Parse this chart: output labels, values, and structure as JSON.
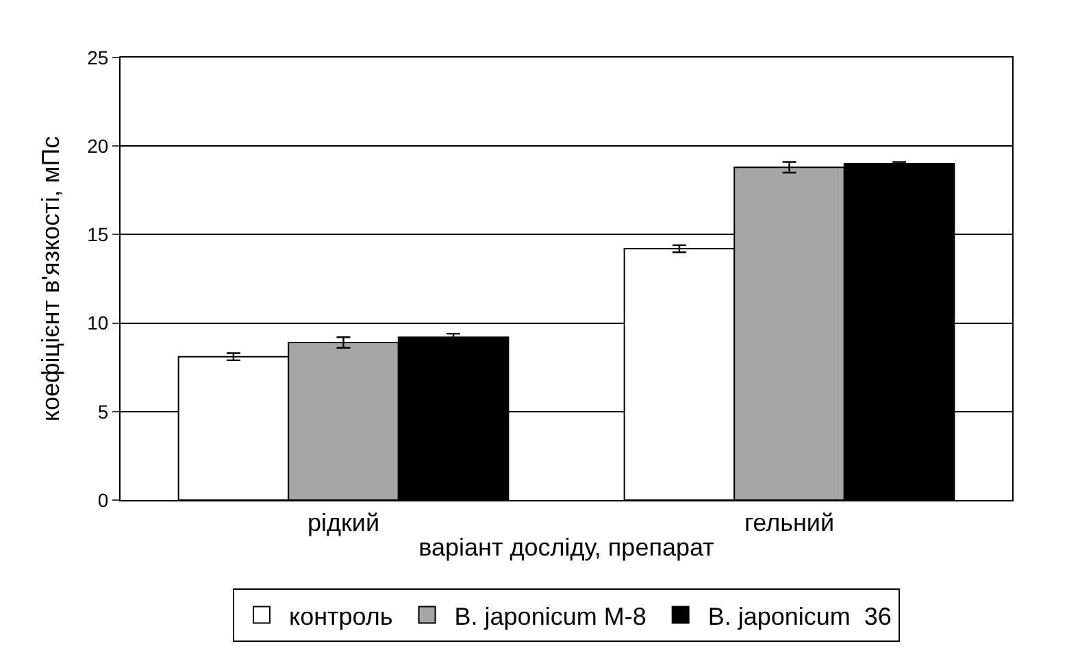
{
  "chart_data": {
    "type": "bar",
    "xlabel": "варіант досліду, препарат",
    "ylabel": "коефіцієнт в'язкості, мПс",
    "categories": [
      "рідкий",
      "гельний"
    ],
    "series": [
      {
        "name": "контроль",
        "color": "#ffffff",
        "values": [
          8.1,
          14.2
        ],
        "errors": [
          0.2,
          0.2
        ]
      },
      {
        "name": "B. japonicum М-8",
        "color": "#a6a6a6",
        "values": [
          8.9,
          18.8
        ],
        "errors": [
          0.3,
          0.3
        ]
      },
      {
        "name": "B. japonicum  36",
        "color": "#000000",
        "values": [
          9.2,
          19.0
        ],
        "errors": [
          0.2,
          0.1
        ]
      }
    ],
    "ylim": [
      0,
      25
    ],
    "yticks": [
      0,
      5,
      10,
      15,
      20,
      25
    ],
    "grid": "y",
    "legend": "bottom"
  }
}
